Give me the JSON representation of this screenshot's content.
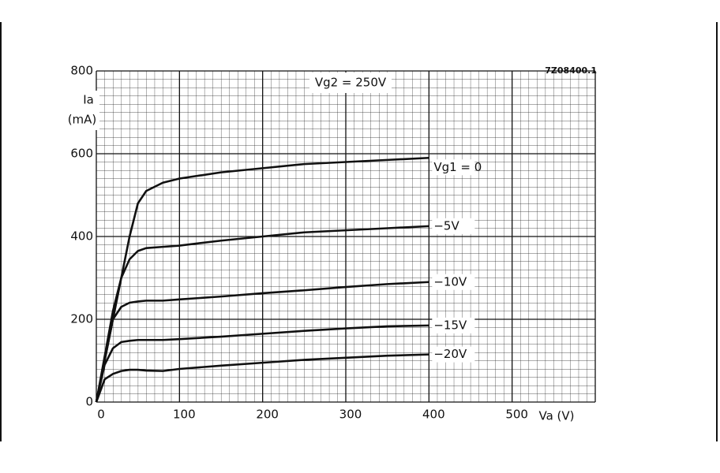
{
  "chart_data": {
    "type": "line",
    "ylabel": "Ia",
    "yunit": "(mA)",
    "xlabel": "Va (V)",
    "annotations": [
      {
        "text": "Vg2 = 250V"
      },
      {
        "text": "7Z08400.1"
      }
    ],
    "x": [
      0,
      10,
      20,
      30,
      40,
      50,
      60,
      80,
      100,
      150,
      200,
      250,
      300,
      350,
      400
    ],
    "series": [
      {
        "name": "Vg1 = 0",
        "color": "#111111",
        "values": [
          0,
          100,
          200,
          300,
          400,
          480,
          510,
          530,
          540,
          555,
          565,
          575,
          580,
          585,
          590
        ]
      },
      {
        "name": "−5V",
        "color": "#111111",
        "values": [
          0,
          110,
          220,
          300,
          345,
          365,
          372,
          375,
          378,
          390,
          400,
          410,
          415,
          420,
          425
        ]
      },
      {
        "name": "−10V",
        "color": "#111111",
        "values": [
          0,
          100,
          200,
          230,
          240,
          243,
          245,
          245,
          248,
          255,
          263,
          270,
          278,
          285,
          290
        ]
      },
      {
        "name": "−15V",
        "color": "#111111",
        "values": [
          0,
          90,
          130,
          145,
          148,
          150,
          150,
          150,
          152,
          158,
          165,
          172,
          178,
          183,
          185
        ]
      },
      {
        "name": "−20V",
        "color": "#111111",
        "values": [
          0,
          55,
          68,
          75,
          78,
          78,
          76,
          75,
          80,
          88,
          95,
          102,
          107,
          112,
          115
        ]
      }
    ],
    "xlim": [
      0,
      600
    ],
    "xticks": [
      0,
      100,
      200,
      300,
      400,
      500
    ],
    "ylim": [
      0,
      800
    ],
    "yticks": [
      0,
      200,
      400,
      600,
      800
    ],
    "grid": true
  }
}
